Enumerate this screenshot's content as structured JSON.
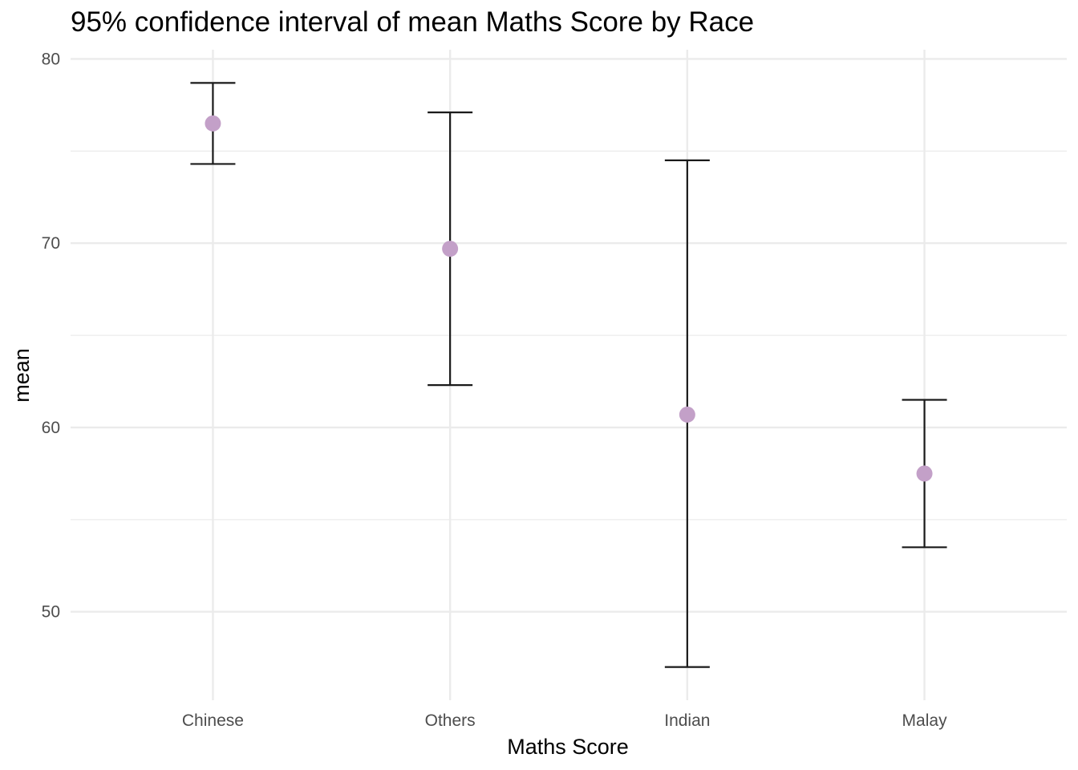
{
  "chart_data": {
    "type": "errorbar",
    "title": "95% confidence interval of mean Maths Score by Race",
    "xlabel": "Maths Score",
    "ylabel": "mean",
    "categories": [
      "Chinese",
      "Others",
      "Indian",
      "Malay"
    ],
    "series": [
      {
        "mean": [
          76.5,
          69.7,
          60.7,
          57.5
        ],
        "lower": [
          74.3,
          62.3,
          47.0,
          53.5
        ],
        "upper": [
          78.7,
          77.1,
          74.5,
          61.5
        ]
      }
    ],
    "ylim": [
      45.2,
      80.5
    ],
    "yticks": [
      50,
      60,
      70,
      80
    ],
    "grid": true,
    "point_color": "#C3A0C8",
    "errorbar_color": "#1a1a1a",
    "grid_color": "#EBEBEB"
  }
}
